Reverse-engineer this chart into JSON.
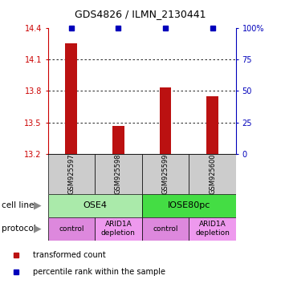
{
  "title": "GDS4826 / ILMN_2130441",
  "samples": [
    "GSM925597",
    "GSM925598",
    "GSM925599",
    "GSM925600"
  ],
  "bar_values": [
    14.25,
    13.47,
    13.83,
    13.75
  ],
  "bar_bottom": 13.2,
  "percentile_values": [
    100,
    100,
    100,
    100
  ],
  "ylim": [
    13.2,
    14.4
  ],
  "yticks_left": [
    13.2,
    13.5,
    13.8,
    14.1,
    14.4
  ],
  "yticks_right": [
    0,
    25,
    50,
    75,
    100
  ],
  "bar_color": "#bb1111",
  "percentile_color": "#0000bb",
  "bar_width": 0.25,
  "cell_line_data": [
    {
      "label": "OSE4",
      "span": [
        0,
        2
      ],
      "color": "#aaeaaa"
    },
    {
      "label": "IOSE80pc",
      "span": [
        2,
        4
      ],
      "color": "#44dd44"
    }
  ],
  "protocol_data": [
    {
      "label": "control",
      "span": [
        0,
        1
      ],
      "color": "#dd88dd"
    },
    {
      "label": "ARID1A\ndepletion",
      "span": [
        1,
        2
      ],
      "color": "#ee99ee"
    },
    {
      "label": "control",
      "span": [
        2,
        3
      ],
      "color": "#dd88dd"
    },
    {
      "label": "ARID1A\ndepletion",
      "span": [
        3,
        4
      ],
      "color": "#ee99ee"
    }
  ],
  "legend_items": [
    {
      "color": "#bb1111",
      "label": "transformed count"
    },
    {
      "color": "#0000bb",
      "label": "percentile rank within the sample"
    }
  ],
  "gsm_bg_color": "#cccccc",
  "annotation_cell_line": "cell line",
  "annotation_protocol": "protocol"
}
